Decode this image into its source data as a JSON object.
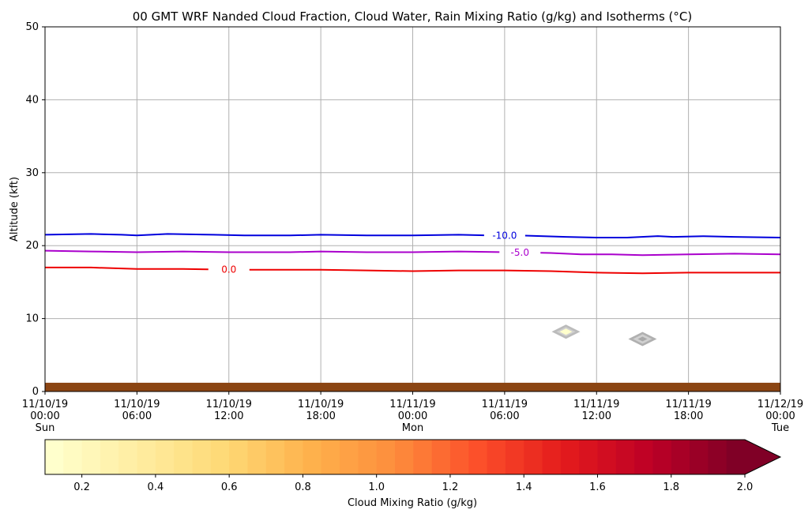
{
  "chart_data": {
    "type": "line",
    "title": "00 GMT WRF Nanded Cloud Fraction, Cloud Water, Rain Mixing Ratio (g/kg) and Isotherms (°C)",
    "xlabel": "",
    "ylabel": "Altitude (kft)",
    "ylim": [
      0,
      50
    ],
    "yticks": [
      0,
      10,
      20,
      30,
      40,
      50
    ],
    "xlim": [
      "2019-11-10 00:00",
      "2019-11-12 00:00"
    ],
    "grid": true,
    "xticks": [
      {
        "time": "2019-11-10 00:00",
        "lines": [
          "11/10/19",
          "00:00",
          "Sun"
        ]
      },
      {
        "time": "2019-11-10 06:00",
        "lines": [
          "11/10/19",
          "06:00"
        ]
      },
      {
        "time": "2019-11-10 12:00",
        "lines": [
          "11/10/19",
          "12:00"
        ]
      },
      {
        "time": "2019-11-10 18:00",
        "lines": [
          "11/10/19",
          "18:00"
        ]
      },
      {
        "time": "2019-11-11 00:00",
        "lines": [
          "11/11/19",
          "00:00",
          "Mon"
        ]
      },
      {
        "time": "2019-11-11 06:00",
        "lines": [
          "11/11/19",
          "06:00"
        ]
      },
      {
        "time": "2019-11-11 12:00",
        "lines": [
          "11/11/19",
          "12:00"
        ]
      },
      {
        "time": "2019-11-11 18:00",
        "lines": [
          "11/11/19",
          "18:00"
        ]
      },
      {
        "time": "2019-11-12 00:00",
        "lines": [
          "11/12/19",
          "00:00",
          "Tue"
        ]
      }
    ],
    "series": [
      {
        "name": "-10.0",
        "color": "#0000dd",
        "label_time": "2019-11-11 06:00",
        "points": [
          [
            "2019-11-10 00:00",
            21.5
          ],
          [
            "2019-11-10 03:00",
            21.6
          ],
          [
            "2019-11-10 05:00",
            21.5
          ],
          [
            "2019-11-10 06:00",
            21.4
          ],
          [
            "2019-11-10 08:00",
            21.6
          ],
          [
            "2019-11-10 11:00",
            21.5
          ],
          [
            "2019-11-10 13:00",
            21.4
          ],
          [
            "2019-11-10 16:00",
            21.4
          ],
          [
            "2019-11-10 18:00",
            21.5
          ],
          [
            "2019-11-10 21:00",
            21.4
          ],
          [
            "2019-11-11 00:00",
            21.4
          ],
          [
            "2019-11-11 03:00",
            21.5
          ],
          [
            "2019-11-11 05:00",
            21.4
          ],
          [
            "2019-11-11 07:00",
            21.4
          ],
          [
            "2019-11-11 10:00",
            21.2
          ],
          [
            "2019-11-11 12:00",
            21.1
          ],
          [
            "2019-11-11 14:00",
            21.1
          ],
          [
            "2019-11-11 16:00",
            21.3
          ],
          [
            "2019-11-11 17:00",
            21.2
          ],
          [
            "2019-11-11 19:00",
            21.3
          ],
          [
            "2019-11-11 21:00",
            21.2
          ],
          [
            "2019-11-12 00:00",
            21.1
          ]
        ]
      },
      {
        "name": "-5.0",
        "color": "#aa00cc",
        "label_time": "2019-11-11 07:00",
        "points": [
          [
            "2019-11-10 00:00",
            19.3
          ],
          [
            "2019-11-10 03:00",
            19.2
          ],
          [
            "2019-11-10 06:00",
            19.1
          ],
          [
            "2019-11-10 09:00",
            19.2
          ],
          [
            "2019-11-10 12:00",
            19.1
          ],
          [
            "2019-11-10 16:00",
            19.1
          ],
          [
            "2019-11-10 18:00",
            19.2
          ],
          [
            "2019-11-10 21:00",
            19.1
          ],
          [
            "2019-11-11 00:00",
            19.1
          ],
          [
            "2019-11-11 03:00",
            19.2
          ],
          [
            "2019-11-11 06:00",
            19.1
          ],
          [
            "2019-11-11 09:00",
            19.0
          ],
          [
            "2019-11-11 11:00",
            18.8
          ],
          [
            "2019-11-11 13:00",
            18.8
          ],
          [
            "2019-11-11 15:00",
            18.7
          ],
          [
            "2019-11-11 18:00",
            18.8
          ],
          [
            "2019-11-11 21:00",
            18.9
          ],
          [
            "2019-11-12 00:00",
            18.8
          ]
        ]
      },
      {
        "name": "0.0",
        "color": "#ee0000",
        "label_time": "2019-11-10 12:00",
        "points": [
          [
            "2019-11-10 00:00",
            17.0
          ],
          [
            "2019-11-10 03:00",
            17.0
          ],
          [
            "2019-11-10 06:00",
            16.8
          ],
          [
            "2019-11-10 09:00",
            16.8
          ],
          [
            "2019-11-10 12:00",
            16.7
          ],
          [
            "2019-11-10 18:00",
            16.7
          ],
          [
            "2019-11-10 21:00",
            16.6
          ],
          [
            "2019-11-11 00:00",
            16.5
          ],
          [
            "2019-11-11 03:00",
            16.6
          ],
          [
            "2019-11-11 06:00",
            16.6
          ],
          [
            "2019-11-11 09:00",
            16.5
          ],
          [
            "2019-11-11 12:00",
            16.3
          ],
          [
            "2019-11-11 15:00",
            16.2
          ],
          [
            "2019-11-11 18:00",
            16.3
          ],
          [
            "2019-11-11 21:00",
            16.3
          ],
          [
            "2019-11-12 00:00",
            16.3
          ]
        ]
      }
    ],
    "cloud_patches": [
      {
        "time": "2019-11-11 10:00",
        "altitude": 8.2,
        "mixing_ratio": 0.15,
        "cloud_fraction_color": "#bbbbbb"
      },
      {
        "time": "2019-11-11 15:00",
        "altitude": 7.2,
        "mixing_ratio": 0.0,
        "cloud_fraction_color": "#b0b0b0"
      }
    ],
    "terrain": {
      "altitude_top": 1.2,
      "color": "#8b4513"
    },
    "colorbar": {
      "label": "Cloud Mixing Ratio (g/kg)",
      "min": 0.1,
      "max": 2.0,
      "extend": "max",
      "ticks": [
        "0.2",
        "0.4",
        "0.6",
        "0.8",
        "1.0",
        "1.2",
        "1.4",
        "1.6",
        "1.8",
        "2.0"
      ],
      "colors": [
        "#ffffcc",
        "#ffeda0",
        "#fed976",
        "#feb24c",
        "#fd8d3c",
        "#fc4e2a",
        "#e31a1c",
        "#bd0026",
        "#800026"
      ]
    }
  }
}
